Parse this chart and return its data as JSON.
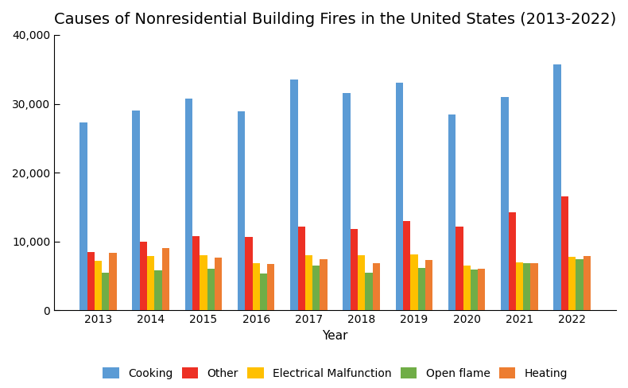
{
  "title": "Causes of Nonresidential Building Fires in the United States (2013-2022)",
  "years": [
    2013,
    2014,
    2015,
    2016,
    2017,
    2018,
    2019,
    2020,
    2021,
    2022
  ],
  "xlabel": "Year",
  "ylim": [
    0,
    40000
  ],
  "yticks": [
    0,
    10000,
    20000,
    30000,
    40000
  ],
  "ytick_labels": [
    "0",
    "10,000",
    "20,000",
    "30,000",
    "40,000"
  ],
  "series": {
    "Cooking": [
      27300,
      29000,
      30700,
      28900,
      33500,
      31600,
      33100,
      28500,
      31000,
      35700
    ],
    "Other": [
      8500,
      10000,
      10800,
      10700,
      12200,
      11800,
      13000,
      12200,
      14300,
      16600
    ],
    "Electrical Malfunction": [
      7200,
      7900,
      8000,
      6900,
      8000,
      8000,
      8100,
      6500,
      7000,
      7800
    ],
    "Open flame": [
      5500,
      5800,
      6000,
      5300,
      6500,
      5500,
      6200,
      5900,
      6800,
      7400
    ],
    "Heating": [
      8400,
      9100,
      7700,
      6700,
      7400,
      6900,
      7300,
      6100,
      6800,
      7900
    ]
  },
  "colors": {
    "Cooking": "#5B9BD5",
    "Other": "#ED3024",
    "Electrical Malfunction": "#FFC000",
    "Open flame": "#70AD47",
    "Heating": "#ED7D31"
  },
  "bar_width": 0.14,
  "legend_ncol": 5,
  "background_color": "#FFFFFF",
  "title_fontsize": 14,
  "axis_label_fontsize": 11,
  "tick_fontsize": 10
}
